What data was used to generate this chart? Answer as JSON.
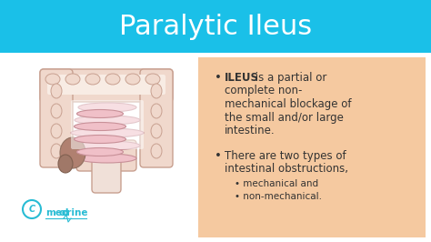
{
  "title": "Paralytic Ileus",
  "title_color": "white",
  "title_bg_color": "#1ac0e8",
  "body_bg_color": "white",
  "box_bg_color": "#f5c9a0",
  "bullet1_bold": "ILEUS",
  "bullet1_rest": " is a partial or",
  "bullet1_lines": [
    "complete non-",
    "mechanical blockage of",
    "the small and/or large",
    "intestine."
  ],
  "bullet2_line1": "There are two types of",
  "bullet2_line2": "intestinal obstructions,",
  "sub_bullet1": "mechanical and",
  "sub_bullet2": "non-mechanical.",
  "medcrine_color": "#29bcd4",
  "text_color": "#333333",
  "colon_fill": "#f0d8cc",
  "colon_edge": "#c8a090",
  "colon_inner": "#f8ece4",
  "small_int_fill": "#f0c0c8",
  "small_int_edge": "#c89098",
  "cecum_fill": "#b08070",
  "sigmoid_fill": "#f0e0d8",
  "title_fontsize": 22,
  "body_fontsize": 8.5,
  "sub_fontsize": 7.5,
  "figsize": [
    4.74,
    2.66
  ],
  "dpi": 100
}
